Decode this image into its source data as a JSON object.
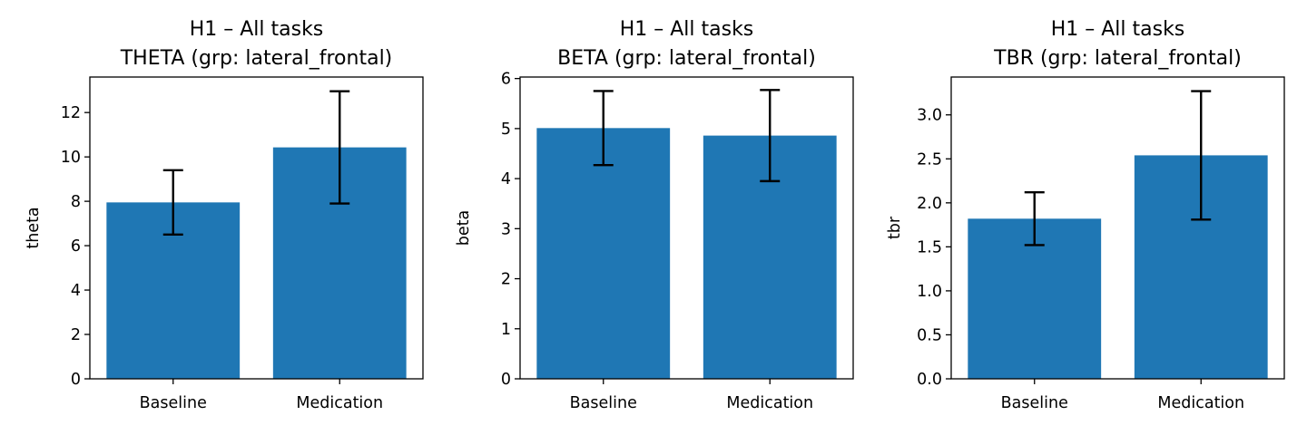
{
  "chart_data": [
    {
      "type": "bar",
      "title": "H1 – All tasks",
      "subtitle": "THETA (grp: lateral_frontal)",
      "xlabel": "",
      "ylabel": "theta",
      "categories": [
        "Baseline",
        "Medication"
      ],
      "values": [
        7.95,
        10.43
      ],
      "errors": [
        1.45,
        2.53
      ],
      "ylim": [
        0,
        13.6
      ],
      "yticks": [
        0,
        2,
        4,
        6,
        8,
        10,
        12
      ],
      "ytick_labels": [
        "0",
        "2",
        "4",
        "6",
        "8",
        "10",
        "12"
      ],
      "grid": false,
      "bar_color": "#1f77b4",
      "error_color": "#000000"
    },
    {
      "type": "bar",
      "title": "H1 – All tasks",
      "subtitle": "BETA (grp: lateral_frontal)",
      "xlabel": "",
      "ylabel": "beta",
      "categories": [
        "Baseline",
        "Medication"
      ],
      "values": [
        5.01,
        4.86
      ],
      "errors": [
        0.74,
        0.91
      ],
      "ylim": [
        0,
        6.03
      ],
      "yticks": [
        0,
        1,
        2,
        3,
        4,
        5,
        6
      ],
      "ytick_labels": [
        "0",
        "1",
        "2",
        "3",
        "4",
        "5",
        "6"
      ],
      "grid": false,
      "bar_color": "#1f77b4",
      "error_color": "#000000"
    },
    {
      "type": "bar",
      "title": "H1 – All tasks",
      "subtitle": "TBR (grp: lateral_frontal)",
      "xlabel": "",
      "ylabel": "tbr",
      "categories": [
        "Baseline",
        "Medication"
      ],
      "values": [
        1.82,
        2.54
      ],
      "errors": [
        0.3,
        0.73
      ],
      "ylim": [
        0,
        3.43
      ],
      "yticks": [
        0,
        0.5,
        1,
        1.5,
        2,
        2.5,
        3
      ],
      "ytick_labels": [
        "0.0",
        "0.5",
        "1.0",
        "1.5",
        "2.0",
        "2.5",
        "3.0"
      ],
      "grid": false,
      "bar_color": "#1f77b4",
      "error_color": "#000000"
    }
  ]
}
